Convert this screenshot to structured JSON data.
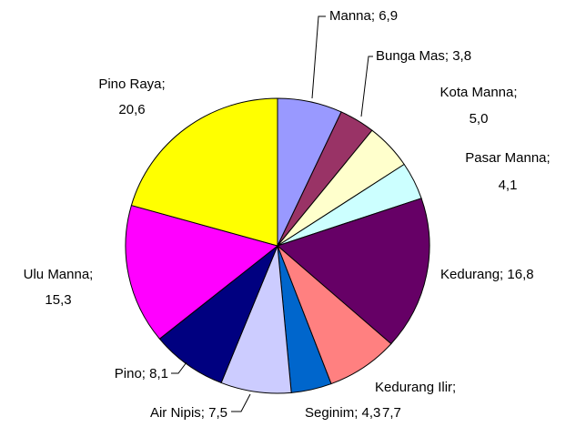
{
  "chart_data": {
    "type": "pie",
    "labels": [
      [
        "Manna; 6,9"
      ],
      [
        "Bunga Mas; 3,8"
      ],
      [
        "Kota Manna;",
        "5,0"
      ],
      [
        "Pasar Manna;",
        "4,1"
      ],
      [
        "Kedurang; 16,8"
      ],
      [
        "Kedurang Ilir;",
        "7,7"
      ],
      [
        "Seginim; 4,3"
      ],
      [
        "Air Nipis; 7,5"
      ],
      [
        "Pino; 8,1"
      ],
      [
        "Ulu Manna;",
        "15,3"
      ],
      [
        "Pino Raya;",
        "20,6"
      ]
    ],
    "values": [
      6.9,
      3.8,
      5.0,
      4.1,
      16.8,
      7.7,
      4.3,
      7.5,
      8.1,
      15.3,
      20.6
    ],
    "colors": [
      "#9999ff",
      "#993366",
      "#ffffcc",
      "#ccffff",
      "#660066",
      "#ff8080",
      "#0066cc",
      "#ccccff",
      "#000080",
      "#ff00ff",
      "#ffff00"
    ]
  }
}
